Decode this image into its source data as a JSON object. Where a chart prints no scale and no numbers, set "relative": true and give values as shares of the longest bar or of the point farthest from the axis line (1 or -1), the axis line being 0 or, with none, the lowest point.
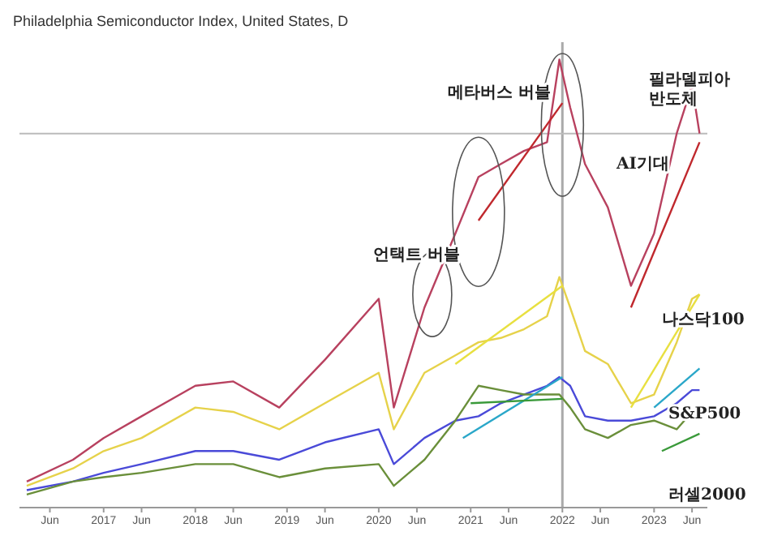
{
  "chart_data": {
    "type": "line",
    "title": "Philadelphia Semiconductor Index, United States, D",
    "relative": true,
    "marker": "none",
    "grid": false,
    "tick_labels": "x",
    "x": [
      "2016-03",
      "2016-09",
      "2017-01",
      "2017-06",
      "2018-01",
      "2018-06",
      "2018-12",
      "2019-06",
      "2020-01",
      "2020-03",
      "2020-07",
      "2020-11",
      "2021-02",
      "2021-05",
      "2021-08",
      "2021-11",
      "2021-12-20",
      "2022-02",
      "2022-04",
      "2022-07",
      "2022-10",
      "2023-01",
      "2023-04",
      "2023-06",
      "2023-07"
    ],
    "xlim": [
      "2016-02",
      "2023-08"
    ],
    "xticks": [
      {
        "value": "2016-06",
        "label": "Jun"
      },
      {
        "value": "2017",
        "label": "2017"
      },
      {
        "value": "2017-06",
        "label": "Jun"
      },
      {
        "value": "2018",
        "label": "2018"
      },
      {
        "value": "2018-06",
        "label": "Jun"
      },
      {
        "value": "2019",
        "label": "2019"
      },
      {
        "value": "2019-06",
        "label": "Jun"
      },
      {
        "value": "2020",
        "label": "2020"
      },
      {
        "value": "2020-06",
        "label": "Jun"
      },
      {
        "value": "2021",
        "label": "2021"
      },
      {
        "value": "2021-06",
        "label": "Jun"
      },
      {
        "value": "2022",
        "label": "2022"
      },
      {
        "value": "2022-06",
        "label": "Jun"
      },
      {
        "value": "2023",
        "label": "2023"
      },
      {
        "value": "2023-06",
        "label": "Jun"
      }
    ],
    "series": [
      {
        "color": "#b8415f",
        "values": [
          0.03,
          0.08,
          0.13,
          0.18,
          0.25,
          0.26,
          0.2,
          0.31,
          0.45,
          0.2,
          0.43,
          0.6,
          0.73,
          0.76,
          0.79,
          0.81,
          1.0,
          0.89,
          0.76,
          0.66,
          0.48,
          0.6,
          0.83,
          0.94,
          0.83
        ]
      },
      {
        "color": "#e6d24a",
        "values": [
          0.02,
          0.06,
          0.1,
          0.13,
          0.2,
          0.19,
          0.15,
          0.21,
          0.28,
          0.15,
          0.28,
          0.32,
          0.35,
          0.36,
          0.38,
          0.41,
          0.5,
          0.43,
          0.33,
          0.3,
          0.21,
          0.23,
          0.35,
          0.45,
          0.46
        ]
      },
      {
        "color": "#4a4ad8",
        "values": [
          0.01,
          0.03,
          0.05,
          0.07,
          0.1,
          0.1,
          0.08,
          0.12,
          0.15,
          0.07,
          0.13,
          0.17,
          0.18,
          0.21,
          0.23,
          0.25,
          0.27,
          0.25,
          0.18,
          0.17,
          0.17,
          0.18,
          0.21,
          0.24,
          0.24
        ]
      },
      {
        "color": "#6a8f3a",
        "values": [
          0,
          0.03,
          0.04,
          0.05,
          0.07,
          0.07,
          0.04,
          0.06,
          0.07,
          0.02,
          0.08,
          0.17,
          0.25,
          0.24,
          0.23,
          0.23,
          0.23,
          0.2,
          0.15,
          0.13,
          0.16,
          0.17,
          0.15,
          0.19,
          0.18
        ]
      },
      {
        "color": "#c0282d",
        "x": [
          "2021-02",
          "2022-01"
        ],
        "values": [
          0.63,
          0.9
        ]
      },
      {
        "color": "#c0282d",
        "x": [
          "2022-10",
          "2023-07"
        ],
        "values": [
          0.43,
          0.81
        ]
      },
      {
        "color": "#e8e040",
        "x": [
          "2020-11",
          "2022-01"
        ],
        "values": [
          0.3,
          0.48
        ]
      },
      {
        "color": "#e8e040",
        "x": [
          "2022-10",
          "2023-07"
        ],
        "values": [
          0.2,
          0.46
        ]
      },
      {
        "color": "#2aa7c9",
        "x": [
          "2020-12",
          "2022-01"
        ],
        "values": [
          0.13,
          0.27
        ]
      },
      {
        "color": "#2aa7c9",
        "x": [
          "2023-01",
          "2023-07"
        ],
        "values": [
          0.2,
          0.29
        ]
      },
      {
        "color": "#3a9a3a",
        "x": [
          "2021-01",
          "2022-01"
        ],
        "values": [
          0.21,
          0.22
        ]
      },
      {
        "color": "#3a9a3a",
        "x": [
          "2023-02",
          "2023-07"
        ],
        "values": [
          0.1,
          0.14
        ]
      }
    ],
    "ref_lines": [
      {
        "axis": "x",
        "value": "2022-01",
        "color": "#aaaaaa"
      },
      {
        "axis": "y",
        "value": 0.83,
        "color": "#bbbbbb"
      }
    ],
    "annotations": [
      "언택트 버블",
      "메타버스 버블",
      "AI기대",
      "필라델피아\n반도체",
      "나스닥100",
      "S&P500",
      "러셀2000"
    ]
  }
}
